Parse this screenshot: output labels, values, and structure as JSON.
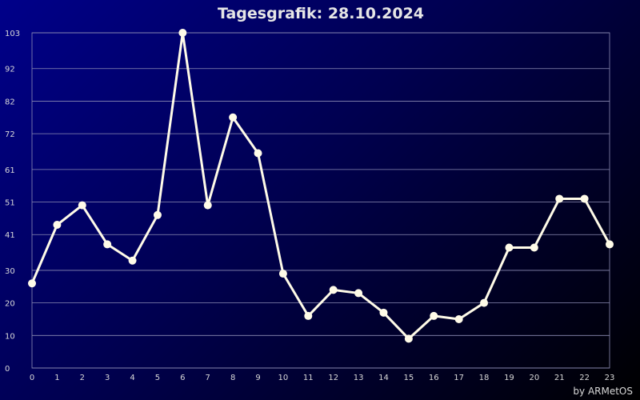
{
  "chart_data": {
    "type": "line",
    "title": "Tagesgrafik: 28.10.2024",
    "x": [
      0,
      1,
      2,
      3,
      4,
      5,
      6,
      7,
      8,
      9,
      10,
      11,
      12,
      13,
      14,
      15,
      16,
      17,
      18,
      19,
      20,
      21,
      22,
      23
    ],
    "values": [
      26,
      44,
      50,
      38,
      33,
      47,
      103,
      50,
      77,
      66,
      29,
      16,
      24,
      23,
      17,
      9,
      16,
      15,
      20,
      37,
      37,
      52,
      52,
      38
    ],
    "yticks": [
      0,
      10,
      20,
      30,
      41,
      51,
      61,
      72,
      82,
      92,
      103
    ],
    "ylim": [
      0,
      103
    ],
    "xlim": [
      0,
      23
    ],
    "grid": true,
    "line_color": "#fffbe8",
    "grid_color": "#8c8cb4"
  },
  "credit": "by ARMetOS"
}
